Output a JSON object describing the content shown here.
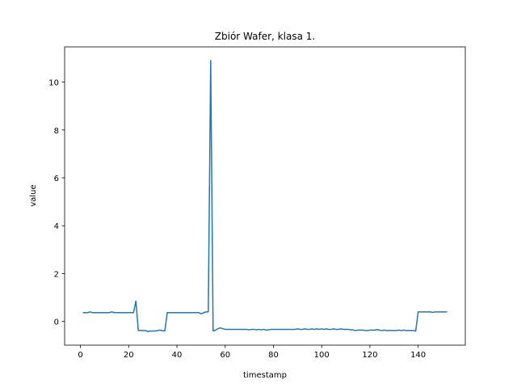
{
  "chart_data": {
    "type": "line",
    "title": "Zbiór Wafer, klasa 1.",
    "x_label": "timestamp",
    "y_label": "value",
    "color": "#1f77b4",
    "xlim": [
      -6.55,
      159.55
    ],
    "ylim": [
      -0.99,
      11.47
    ],
    "xticks": [
      0,
      20,
      40,
      60,
      80,
      100,
      120,
      140
    ],
    "yticks": [
      0,
      2,
      4,
      6,
      8,
      10
    ],
    "x": [
      1,
      2,
      3,
      4,
      5,
      6,
      7,
      8,
      9,
      10,
      11,
      12,
      13,
      14,
      15,
      16,
      17,
      18,
      19,
      20,
      21,
      22,
      23,
      24,
      25,
      26,
      27,
      28,
      29,
      30,
      31,
      32,
      33,
      34,
      35,
      36,
      37,
      38,
      39,
      40,
      41,
      42,
      43,
      44,
      45,
      46,
      47,
      48,
      49,
      50,
      51,
      52,
      53,
      54,
      55,
      56,
      57,
      58,
      59,
      60,
      61,
      62,
      63,
      64,
      65,
      66,
      67,
      68,
      69,
      70,
      71,
      72,
      73,
      74,
      75,
      76,
      77,
      78,
      79,
      80,
      81,
      82,
      83,
      84,
      85,
      86,
      87,
      88,
      89,
      90,
      91,
      92,
      93,
      94,
      95,
      96,
      97,
      98,
      99,
      100,
      101,
      102,
      103,
      104,
      105,
      106,
      107,
      108,
      109,
      110,
      111,
      112,
      113,
      114,
      115,
      116,
      117,
      118,
      119,
      120,
      121,
      122,
      123,
      124,
      125,
      126,
      127,
      128,
      129,
      130,
      131,
      132,
      133,
      134,
      135,
      136,
      137,
      138,
      139,
      140,
      141,
      142,
      143,
      144,
      145,
      146,
      147,
      148,
      149,
      150,
      151,
      152
    ],
    "values": [
      0.37,
      0.37,
      0.37,
      0.4,
      0.37,
      0.37,
      0.37,
      0.37,
      0.37,
      0.37,
      0.37,
      0.37,
      0.4,
      0.37,
      0.37,
      0.37,
      0.37,
      0.37,
      0.37,
      0.37,
      0.37,
      0.37,
      0.85,
      -0.38,
      -0.38,
      -0.38,
      -0.38,
      -0.42,
      -0.4,
      -0.4,
      -0.4,
      -0.38,
      -0.36,
      -0.39,
      -0.39,
      0.37,
      0.37,
      0.37,
      0.37,
      0.37,
      0.37,
      0.37,
      0.37,
      0.37,
      0.37,
      0.37,
      0.37,
      0.37,
      0.37,
      0.32,
      0.36,
      0.4,
      0.4,
      10.9,
      -0.39,
      -0.37,
      -0.3,
      -0.27,
      -0.3,
      -0.33,
      -0.33,
      -0.33,
      -0.33,
      -0.33,
      -0.33,
      -0.33,
      -0.33,
      -0.33,
      -0.33,
      -0.35,
      -0.33,
      -0.33,
      -0.35,
      -0.33,
      -0.35,
      -0.33,
      -0.36,
      -0.35,
      -0.33,
      -0.33,
      -0.33,
      -0.33,
      -0.33,
      -0.33,
      -0.33,
      -0.33,
      -0.33,
      -0.33,
      -0.33,
      -0.31,
      -0.33,
      -0.33,
      -0.31,
      -0.33,
      -0.33,
      -0.31,
      -0.33,
      -0.31,
      -0.33,
      -0.31,
      -0.33,
      -0.31,
      -0.33,
      -0.33,
      -0.31,
      -0.33,
      -0.33,
      -0.31,
      -0.33,
      -0.33,
      -0.33,
      -0.35,
      -0.35,
      -0.38,
      -0.36,
      -0.36,
      -0.36,
      -0.38,
      -0.38,
      -0.36,
      -0.36,
      -0.36,
      -0.34,
      -0.36,
      -0.38,
      -0.36,
      -0.38,
      -0.38,
      -0.38,
      -0.38,
      -0.38,
      -0.36,
      -0.38,
      -0.36,
      -0.38,
      -0.38,
      -0.38,
      -0.38,
      -0.4,
      0.4,
      0.4,
      0.4,
      0.4,
      0.4,
      0.4,
      0.38,
      0.4,
      0.4,
      0.4,
      0.4,
      0.4,
      0.4
    ]
  }
}
